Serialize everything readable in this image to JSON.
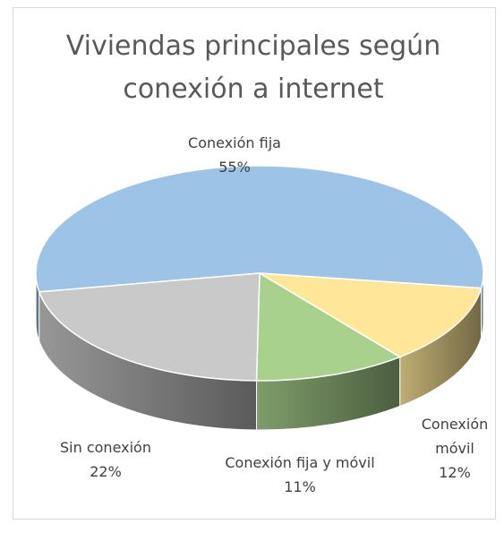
{
  "chart_data": {
    "type": "pie",
    "title": "Viviendas principales según conexión a internet",
    "categories": [
      "Conexión fija",
      "Conexión móvil",
      "Conexión fija y móvil",
      "Sin conexión"
    ],
    "values": [
      55,
      12,
      11,
      22
    ],
    "value_labels": [
      "55%",
      "12%",
      "11%",
      "22%"
    ],
    "colors": [
      "#9dc3e6",
      "#ffe699",
      "#a9d18e",
      "#c9c9c9"
    ]
  }
}
